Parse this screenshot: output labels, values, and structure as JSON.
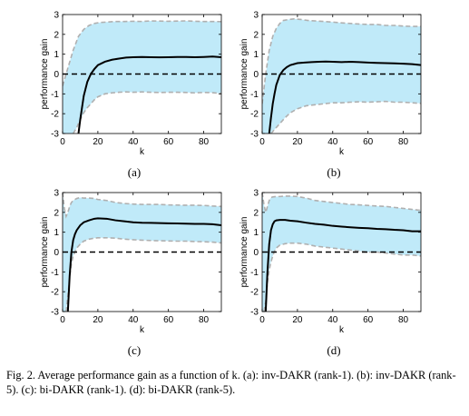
{
  "caption": {
    "text": "Fig. 2.  Average performance gain as a function of k. (a): inv-DAKR (rank-1). (b): inv-DAKR (rank-5). (c): bi-DAKR (rank-1). (d): bi-DAKR (rank-5)."
  },
  "chart_data": [
    {
      "type": "line",
      "panel_label": "(a)",
      "xlabel": "k",
      "ylabel": "performance gain",
      "xlim": [
        0,
        90
      ],
      "ylim": [
        -3,
        3
      ],
      "xticks": [
        0,
        20,
        40,
        60,
        80
      ],
      "yticks": [
        -3,
        -2,
        -1,
        0,
        1,
        2,
        3
      ],
      "reference_line": {
        "y": 0,
        "style": "dashed",
        "color": "#000000"
      },
      "series": [
        {
          "role": "mean",
          "color": "#000000",
          "x": [
            9,
            10,
            12,
            14,
            16,
            18,
            20,
            24,
            28,
            32,
            36,
            40,
            45,
            50,
            55,
            60,
            65,
            70,
            75,
            80,
            85,
            90
          ],
          "values": [
            -3,
            -2.3,
            -1.1,
            -0.4,
            0,
            0.25,
            0.45,
            0.62,
            0.72,
            0.78,
            0.83,
            0.85,
            0.86,
            0.85,
            0.84,
            0.85,
            0.86,
            0.86,
            0.85,
            0.86,
            0.88,
            0.85
          ]
        },
        {
          "role": "upper",
          "color": "#b0b0b0",
          "x": [
            0,
            3,
            6,
            9,
            12,
            15,
            18,
            21,
            25,
            30,
            35,
            40,
            45,
            50,
            55,
            60,
            65,
            70,
            75,
            80,
            85,
            90
          ],
          "values": [
            -0.6,
            0.3,
            1.2,
            1.9,
            2.25,
            2.45,
            2.55,
            2.6,
            2.62,
            2.65,
            2.65,
            2.66,
            2.65,
            2.68,
            2.67,
            2.66,
            2.67,
            2.68,
            2.66,
            2.65,
            2.65,
            2.64
          ]
        },
        {
          "role": "lower",
          "color": "#b0b0b0",
          "x": [
            6,
            8,
            10,
            12,
            14,
            16,
            18,
            20,
            24,
            28,
            32,
            36,
            40,
            45,
            50,
            55,
            60,
            65,
            70,
            75,
            80,
            85,
            90
          ],
          "values": [
            -3,
            -2.7,
            -2.3,
            -1.95,
            -1.7,
            -1.5,
            -1.3,
            -1.15,
            -1.0,
            -0.95,
            -0.92,
            -0.9,
            -0.92,
            -0.9,
            -0.92,
            -0.93,
            -0.92,
            -0.92,
            -0.93,
            -0.95,
            -0.93,
            -0.94,
            -0.98
          ]
        }
      ],
      "band_color": "#c6ecfa"
    },
    {
      "type": "line",
      "panel_label": "(b)",
      "xlabel": "k",
      "ylabel": "performance gain",
      "xlim": [
        0,
        90
      ],
      "ylim": [
        -3,
        3
      ],
      "xticks": [
        0,
        20,
        40,
        60,
        80
      ],
      "yticks": [
        -3,
        -2,
        -1,
        0,
        1,
        2,
        3
      ],
      "reference_line": {
        "y": 0,
        "style": "dashed",
        "color": "#000000"
      },
      "series": [
        {
          "role": "mean",
          "color": "#000000",
          "x": [
            4,
            5,
            6,
            7,
            8,
            10,
            12,
            14,
            16,
            20,
            24,
            28,
            32,
            36,
            40,
            45,
            50,
            55,
            60,
            65,
            70,
            75,
            80,
            85,
            90
          ],
          "values": [
            -3,
            -2.2,
            -1.5,
            -1.0,
            -0.55,
            -0.05,
            0.2,
            0.35,
            0.45,
            0.55,
            0.58,
            0.6,
            0.62,
            0.63,
            0.62,
            0.6,
            0.62,
            0.6,
            0.58,
            0.56,
            0.55,
            0.54,
            0.52,
            0.5,
            0.45
          ]
        },
        {
          "role": "upper",
          "color": "#b0b0b0",
          "x": [
            0,
            2,
            4,
            6,
            8,
            10,
            12,
            15,
            18,
            22,
            26,
            30,
            35,
            40,
            45,
            50,
            55,
            60,
            65,
            70,
            75,
            80,
            85,
            90
          ],
          "values": [
            -1.5,
            0,
            1.2,
            1.9,
            2.3,
            2.55,
            2.7,
            2.75,
            2.78,
            2.75,
            2.7,
            2.68,
            2.65,
            2.62,
            2.58,
            2.55,
            2.52,
            2.5,
            2.5,
            2.45,
            2.45,
            2.42,
            2.4,
            2.4
          ]
        },
        {
          "role": "lower",
          "color": "#b0b0b0",
          "x": [
            5,
            7,
            10,
            13,
            16,
            20,
            25,
            30,
            35,
            40,
            45,
            50,
            55,
            60,
            65,
            70,
            75,
            80,
            85,
            90
          ],
          "values": [
            -3,
            -2.8,
            -2.5,
            -2.2,
            -1.95,
            -1.75,
            -1.6,
            -1.55,
            -1.5,
            -1.45,
            -1.45,
            -1.42,
            -1.4,
            -1.42,
            -1.4,
            -1.38,
            -1.42,
            -1.42,
            -1.45,
            -1.48
          ]
        }
      ],
      "band_color": "#c6ecfa"
    },
    {
      "type": "line",
      "panel_label": "(c)",
      "xlabel": "k",
      "ylabel": "performance gain",
      "xlim": [
        0,
        90
      ],
      "ylim": [
        -3,
        3
      ],
      "xticks": [
        0,
        20,
        40,
        60,
        80
      ],
      "yticks": [
        -3,
        -2,
        -1,
        0,
        1,
        2,
        3
      ],
      "reference_line": {
        "y": 0,
        "style": "dashed",
        "color": "#000000"
      },
      "series": [
        {
          "role": "mean",
          "color": "#000000",
          "x": [
            3,
            4,
            5,
            6,
            7,
            8,
            10,
            12,
            15,
            18,
            20,
            25,
            30,
            35,
            40,
            45,
            50,
            55,
            60,
            65,
            70,
            75,
            80,
            85,
            90
          ],
          "values": [
            -3,
            -1.2,
            0,
            0.6,
            0.9,
            1.1,
            1.35,
            1.5,
            1.6,
            1.68,
            1.7,
            1.68,
            1.6,
            1.55,
            1.5,
            1.48,
            1.47,
            1.46,
            1.45,
            1.44,
            1.43,
            1.42,
            1.42,
            1.4,
            1.35
          ]
        },
        {
          "role": "upper",
          "color": "#b0b0b0",
          "x": [
            0,
            1,
            2,
            3,
            4,
            5,
            6,
            8,
            10,
            12,
            15,
            18,
            20,
            25,
            30,
            35,
            40,
            45,
            50,
            55,
            60,
            65,
            70,
            75,
            80,
            85,
            90
          ],
          "values": [
            3,
            2.2,
            1.8,
            2.0,
            2.3,
            2.5,
            2.6,
            2.7,
            2.75,
            2.72,
            2.72,
            2.7,
            2.65,
            2.6,
            2.5,
            2.45,
            2.42,
            2.4,
            2.4,
            2.4,
            2.38,
            2.37,
            2.36,
            2.36,
            2.35,
            2.32,
            2.3
          ]
        },
        {
          "role": "lower",
          "color": "#b0b0b0",
          "x": [
            2,
            3,
            4,
            5,
            6,
            8,
            10,
            12,
            15,
            18,
            20,
            25,
            30,
            35,
            40,
            45,
            50,
            55,
            60,
            65,
            70,
            75,
            80,
            85,
            90
          ],
          "values": [
            -3,
            -2.2,
            -1.3,
            -0.6,
            -0.2,
            0.2,
            0.4,
            0.55,
            0.65,
            0.7,
            0.72,
            0.72,
            0.7,
            0.65,
            0.62,
            0.6,
            0.58,
            0.57,
            0.56,
            0.55,
            0.55,
            0.53,
            0.52,
            0.5,
            0.46
          ]
        }
      ],
      "band_color": "#c6ecfa"
    },
    {
      "type": "line",
      "panel_label": "(d)",
      "xlabel": "k",
      "ylabel": "performance gain",
      "xlim": [
        0,
        90
      ],
      "ylim": [
        -3,
        3
      ],
      "xticks": [
        0,
        20,
        40,
        60,
        80
      ],
      "yticks": [
        -3,
        -2,
        -1,
        0,
        1,
        2,
        3
      ],
      "reference_line": {
        "y": 0,
        "style": "dashed",
        "color": "#000000"
      },
      "series": [
        {
          "role": "mean",
          "color": "#000000",
          "x": [
            2,
            3,
            4,
            5,
            6,
            7,
            8,
            10,
            13,
            16,
            20,
            25,
            30,
            35,
            40,
            45,
            50,
            55,
            60,
            65,
            70,
            75,
            80,
            85,
            90
          ],
          "values": [
            -3,
            -1.0,
            0.4,
            1.1,
            1.4,
            1.55,
            1.6,
            1.62,
            1.62,
            1.58,
            1.55,
            1.48,
            1.42,
            1.38,
            1.32,
            1.28,
            1.25,
            1.22,
            1.2,
            1.17,
            1.15,
            1.12,
            1.1,
            1.05,
            1.05
          ]
        },
        {
          "role": "upper",
          "color": "#b0b0b0",
          "x": [
            0,
            1,
            2,
            3,
            4,
            5,
            6,
            8,
            10,
            13,
            16,
            20,
            25,
            30,
            35,
            40,
            45,
            50,
            55,
            60,
            65,
            70,
            75,
            80,
            85,
            90
          ],
          "values": [
            3,
            2.4,
            2.0,
            2.3,
            2.6,
            2.75,
            2.78,
            2.8,
            2.8,
            2.82,
            2.82,
            2.8,
            2.72,
            2.6,
            2.55,
            2.5,
            2.45,
            2.4,
            2.38,
            2.35,
            2.32,
            2.3,
            2.25,
            2.2,
            2.15,
            2.1
          ]
        },
        {
          "role": "lower",
          "color": "#b0b0b0",
          "x": [
            1,
            2,
            3,
            4,
            5,
            6,
            7,
            8,
            10,
            13,
            16,
            20,
            25,
            30,
            35,
            40,
            45,
            50,
            55,
            60,
            65,
            70,
            75,
            80,
            85,
            90
          ],
          "values": [
            -3,
            -2.5,
            -1.5,
            -0.9,
            -0.5,
            -0.2,
            0.05,
            0.2,
            0.35,
            0.42,
            0.45,
            0.45,
            0.4,
            0.3,
            0.25,
            0.2,
            0.15,
            0.1,
            0.05,
            0,
            0,
            -0.05,
            -0.1,
            -0.15,
            -0.15,
            -0.2
          ]
        }
      ],
      "band_color": "#c6ecfa"
    }
  ]
}
